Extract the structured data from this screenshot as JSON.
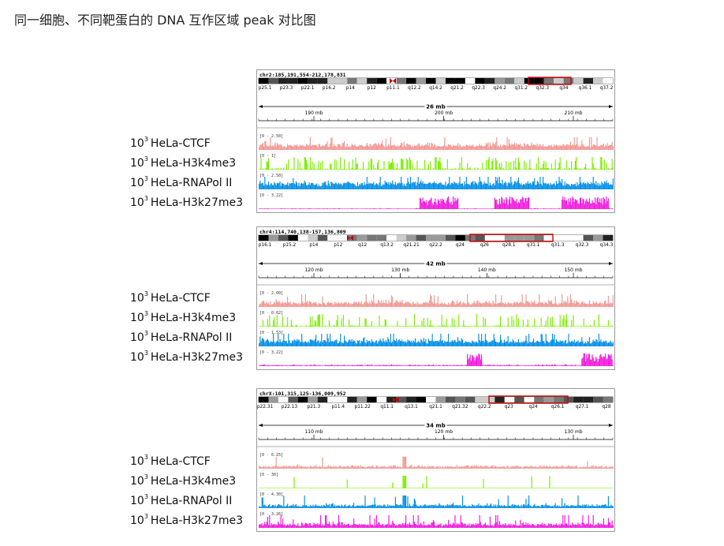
{
  "title": "同一细胞、不同靶蛋白的 DNA 互作区域 peak 对比图",
  "colors": {
    "ctcf": "#f39a95",
    "h3k4me3": "#7cf000",
    "rnapol2": "#0a92e6",
    "h3k27me3": "#f21fe0",
    "highlight": "#cc0000"
  },
  "chart_data": [
    {
      "type": "area",
      "region": "chr2:185,191,554-212,178,831",
      "span_label": "26 mb",
      "bands": [
        "p25.1",
        "p23.3",
        "p22.1",
        "p16.2",
        "p14",
        "p12",
        "p11.1",
        "q12.2",
        "q14.2",
        "q21.2",
        "q22.3",
        "q24.2",
        "q31.2",
        "q32.3",
        "q34",
        "q36.1",
        "q37.2"
      ],
      "ticks": [
        "190 mb",
        "200 mb",
        "210 mb"
      ],
      "tracks": [
        {
          "name": "HeLa-CTCF",
          "prefix": "10",
          "sup": "3",
          "range": "[0 - 2.50]",
          "color_key": "ctcf"
        },
        {
          "name": "HeLa-H3k4me3",
          "prefix": "10",
          "sup": "3",
          "range": "[0 - 1]",
          "color_key": "h3k4me3"
        },
        {
          "name": "HeLa-RNAPol II",
          "prefix": "10",
          "sup": "3",
          "range": "[0 - 2.50]",
          "color_key": "rnapol2"
        },
        {
          "name": "HeLa-H3k27me3",
          "prefix": "10",
          "sup": "3",
          "range": "[0 - 3.22]",
          "color_key": "h3k27me3"
        }
      ]
    },
    {
      "type": "area",
      "region": "chr4:114,740,138-157,136,809",
      "span_label": "42 mb",
      "bands": [
        "p16.1",
        "p15.2",
        "p14",
        "p12",
        "q12",
        "q13.2",
        "q21.21",
        "q22.2",
        "q24",
        "q26",
        "q28.1",
        "q31.1",
        "q31.3",
        "q32.3",
        "q34.3"
      ],
      "ticks": [
        "120 mb",
        "130 mb",
        "140 mb",
        "150 mb"
      ],
      "tracks": [
        {
          "name": "HeLa-CTCF",
          "prefix": "10",
          "sup": "3",
          "range": "[0 - 2.00]",
          "color_key": "ctcf"
        },
        {
          "name": "HeLa-H3k4me3",
          "prefix": "10",
          "sup": "3",
          "range": "[0 - 0.62]",
          "color_key": "h3k4me3"
        },
        {
          "name": "HeLa-RNAPol II",
          "prefix": "10",
          "sup": "3",
          "range": "[0 - 1.53]",
          "color_key": "rnapol2"
        },
        {
          "name": "HeLa-H3k27me3",
          "prefix": "10",
          "sup": "3",
          "range": "[0 - 3.22]",
          "color_key": "h3k27me3"
        }
      ]
    },
    {
      "type": "area",
      "region": "chrX:101,315,125-136,009,952",
      "span_label": "34 mb",
      "bands": [
        "p22.31",
        "p22.13",
        "p21.3",
        "p11.4",
        "p11.22",
        "q11.1",
        "q13.1",
        "q21.1",
        "q21.32",
        "q22.2",
        "q23",
        "q24",
        "q26.1",
        "q27.1",
        "q28"
      ],
      "ticks": [
        "110 mb",
        "120 mb",
        "130 mb"
      ],
      "tracks": [
        {
          "name": "HeLa-CTCF",
          "prefix": "10",
          "sup": "3",
          "range": "[0 - 6.25]",
          "color_key": "ctcf"
        },
        {
          "name": "HeLa-H3k4me3",
          "prefix": "10",
          "sup": "3",
          "range": "[0 - 30]",
          "color_key": "h3k4me3"
        },
        {
          "name": "HeLa-RNAPol II",
          "prefix": "10",
          "sup": "3",
          "range": "[0 - 4.30]",
          "color_key": "rnapol2"
        },
        {
          "name": "HeLa-H3k27me3",
          "prefix": "10",
          "sup": "3",
          "range": "[0 - 3.26]",
          "color_key": "h3k27me3"
        }
      ]
    }
  ]
}
